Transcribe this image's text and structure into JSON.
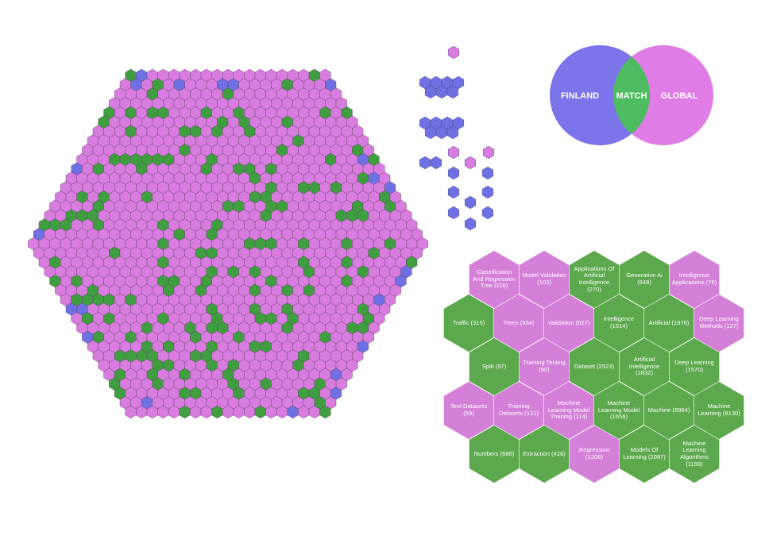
{
  "venn": {
    "left": "FINLAND",
    "middle": "MATCH",
    "right": "GLOBAL"
  },
  "hex_grid": {
    "rows": [
      [
        {
          "label": "Classification And Regression Tree (116)",
          "color": "#d47fd8"
        },
        {
          "label": "Model Validation (103)",
          "color": "#d47fd8"
        },
        {
          "label": "Applications Of Artificial Intelligence (270)",
          "color": "#5ca84c"
        },
        {
          "label": "Generative Ai (648)",
          "color": "#5ca84c"
        },
        {
          "label": "Intelligence Applications (76)",
          "color": "#d47fd8"
        }
      ],
      [
        {
          "label": "Traffic (315)",
          "color": "#5ca84c"
        },
        {
          "label": "Trees (654)",
          "color": "#d47fd8"
        },
        {
          "label": "Validation (627)",
          "color": "#d47fd8"
        },
        {
          "label": "Intelligence (1514)",
          "color": "#5ca84c"
        },
        {
          "label": "Artificial (1876)",
          "color": "#5ca84c"
        },
        {
          "label": "Deep Learning Methods (127)",
          "color": "#d47fd8"
        }
      ],
      [
        {
          "label": "Split (97)",
          "color": "#5ca84c"
        },
        {
          "label": "Training Testing (90)",
          "color": "#d47fd8"
        },
        {
          "label": "Dataset (2523)",
          "color": "#5ca84c"
        },
        {
          "label": "Artificial Intelligence (2832)",
          "color": "#5ca84c"
        },
        {
          "label": "Deep Learning (1570)",
          "color": "#5ca84c"
        }
      ],
      [
        {
          "label": "Test Datasets (59)",
          "color": "#d47fd8"
        },
        {
          "label": "Training Datasets (131)",
          "color": "#d47fd8"
        },
        {
          "label": "Machine Learning Model Training (114)",
          "color": "#d47fd8"
        },
        {
          "label": "Machine Learning Model (1656)",
          "color": "#5ca84c"
        },
        {
          "label": "Machine (8964)",
          "color": "#5ca84c"
        },
        {
          "label": "Machine Learning (8130)",
          "color": "#5ca84c"
        }
      ],
      [
        {
          "label": "Numbers (686)",
          "color": "#5ca84c"
        },
        {
          "label": "Extraction (426)",
          "color": "#5ca84c"
        },
        {
          "label": "Regression (1208)",
          "color": "#d47fd8"
        },
        {
          "label": "Models Of Learning (2087)",
          "color": "#5ca84c"
        },
        {
          "label": "Machine Learning Algorithms (1159)",
          "color": "#5ca84c"
        }
      ]
    ]
  }
}
